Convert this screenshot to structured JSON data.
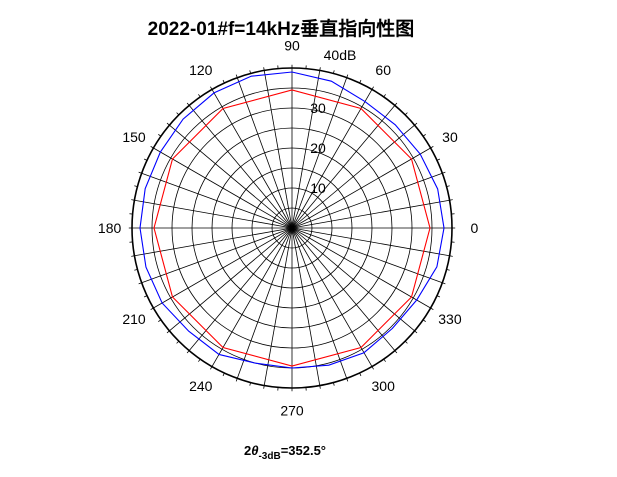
{
  "chart_data": {
    "type": "polar-line",
    "title": "2022-01#f=14kHz垂直指向性图",
    "radial_unit": "40dB",
    "radial_ticks": [
      10,
      20,
      30
    ],
    "rlim": [
      0,
      40
    ],
    "angle_ticks": [
      "0",
      "30",
      "60",
      "90",
      "120",
      "150",
      "180",
      "210",
      "240",
      "270",
      "300",
      "330"
    ],
    "angle_tick_values": [
      0,
      30,
      60,
      90,
      120,
      150,
      180,
      210,
      240,
      270,
      300,
      330
    ],
    "grid": true,
    "series": [
      {
        "color": "#0000ff",
        "angle": [
          0,
          15,
          30,
          45,
          60,
          75,
          90,
          105,
          120,
          135,
          150,
          165,
          180,
          195,
          210,
          225,
          240,
          255,
          270,
          285,
          300,
          315,
          330,
          345
        ],
        "r": [
          38,
          37.7,
          37,
          36.5,
          36.5,
          38,
          39,
          39.3,
          39,
          38.5,
          38,
          38,
          38,
          37.8,
          37.5,
          36.5,
          36.5,
          35,
          35,
          35.5,
          36,
          35.5,
          36,
          37.5
        ]
      },
      {
        "color": "#ff0000",
        "angle": [
          0,
          30,
          60,
          90,
          120,
          150,
          180,
          210,
          240,
          270,
          300,
          330
        ],
        "r": [
          34.5,
          34.5,
          34.5,
          34.5,
          34.5,
          34.5,
          34.5,
          34.5,
          34.5,
          34.5,
          34.5,
          34.5
        ]
      }
    ]
  },
  "annotation": {
    "prefix": "2",
    "symbol": "θ",
    "subscript": "-3dB",
    "value": "=352.5°"
  }
}
